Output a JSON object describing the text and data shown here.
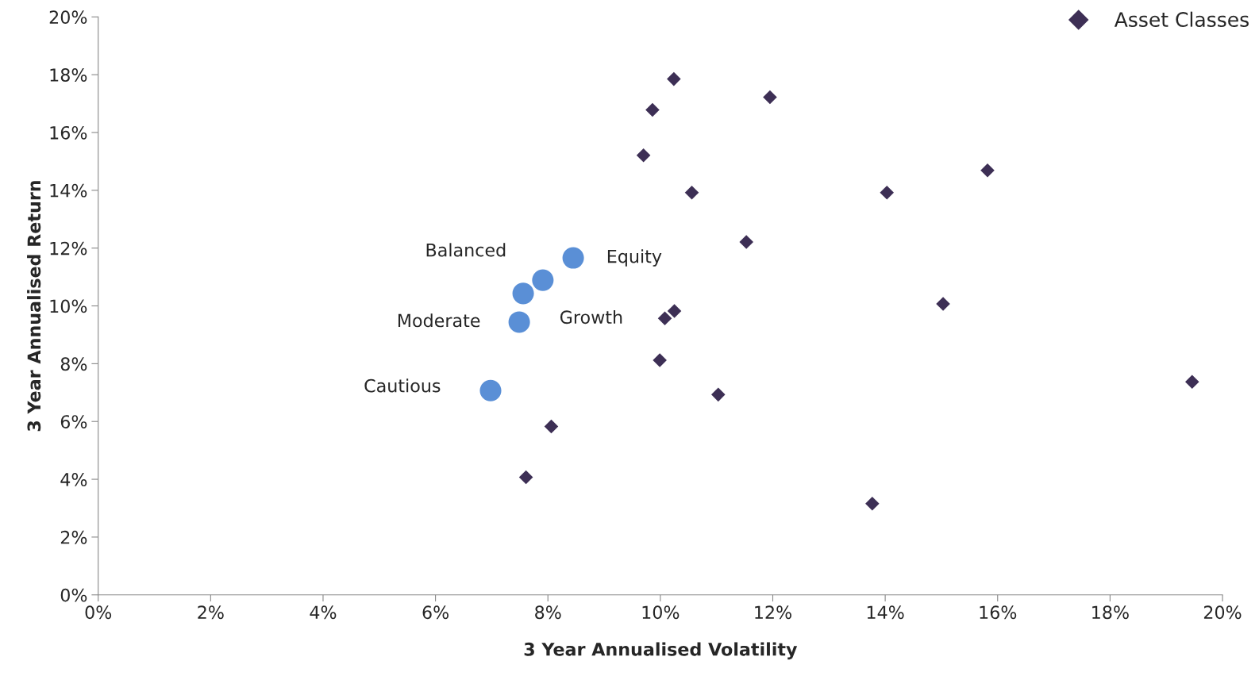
{
  "chart_data": {
    "type": "scatter",
    "xlabel": "3 Year Annualised Volatility",
    "ylabel": "3 Year Annualised Return",
    "xlim": [
      0,
      20
    ],
    "ylim": [
      0,
      20
    ],
    "xticks": [
      {
        "value": 0,
        "label": "0%"
      },
      {
        "value": 2,
        "label": "2%"
      },
      {
        "value": 4,
        "label": "4%"
      },
      {
        "value": 6,
        "label": "6%"
      },
      {
        "value": 8,
        "label": "8%"
      },
      {
        "value": 10,
        "label": "10%"
      },
      {
        "value": 12,
        "label": "12%"
      },
      {
        "value": 14,
        "label": "14%"
      },
      {
        "value": 16,
        "label": "16%"
      },
      {
        "value": 18,
        "label": "18%"
      },
      {
        "value": 20,
        "label": "20%"
      }
    ],
    "yticks": [
      {
        "value": 0,
        "label": "0%"
      },
      {
        "value": 2,
        "label": "2%"
      },
      {
        "value": 4,
        "label": "4%"
      },
      {
        "value": 6,
        "label": "6%"
      },
      {
        "value": 8,
        "label": "8%"
      },
      {
        "value": 10,
        "label": "10%"
      },
      {
        "value": 12,
        "label": "12%"
      },
      {
        "value": 14,
        "label": "14%"
      },
      {
        "value": 16,
        "label": "16%"
      },
      {
        "value": 18,
        "label": "18%"
      },
      {
        "value": 20,
        "label": "20%"
      }
    ],
    "grid": false,
    "legend": "top right",
    "series": [
      {
        "name": "Asset Classes",
        "color": "#3d2f55",
        "marker": "diamond",
        "x": [
          10.24,
          11.95,
          9.86,
          9.7,
          10.56,
          15.82,
          14.03,
          11.53,
          10.25,
          10.08,
          15.03,
          9.99,
          11.03,
          19.46,
          8.06,
          7.61,
          13.77
        ],
        "values": [
          17.85,
          17.22,
          16.78,
          15.21,
          13.92,
          14.69,
          13.92,
          12.21,
          9.82,
          9.57,
          10.07,
          8.12,
          6.93,
          7.37,
          5.83,
          4.07,
          3.16
        ]
      },
      {
        "color": "#5a8fd6",
        "marker": "circle",
        "x": [
          8.45,
          7.91,
          7.56,
          7.49,
          6.98
        ],
        "values": [
          11.66,
          10.89,
          10.43,
          9.44,
          7.07
        ]
      }
    ],
    "annotations": [
      {
        "text": "Equity",
        "x": 8.45,
        "y": 11.66
      },
      {
        "text": "Growth",
        "x": 7.91,
        "y": 10.89
      },
      {
        "text": "Balanced",
        "x": 7.56,
        "y": 10.43
      },
      {
        "text": "Moderate",
        "x": 7.49,
        "y": 9.44
      },
      {
        "text": "Cautious",
        "x": 6.98,
        "y": 7.07
      }
    ]
  }
}
